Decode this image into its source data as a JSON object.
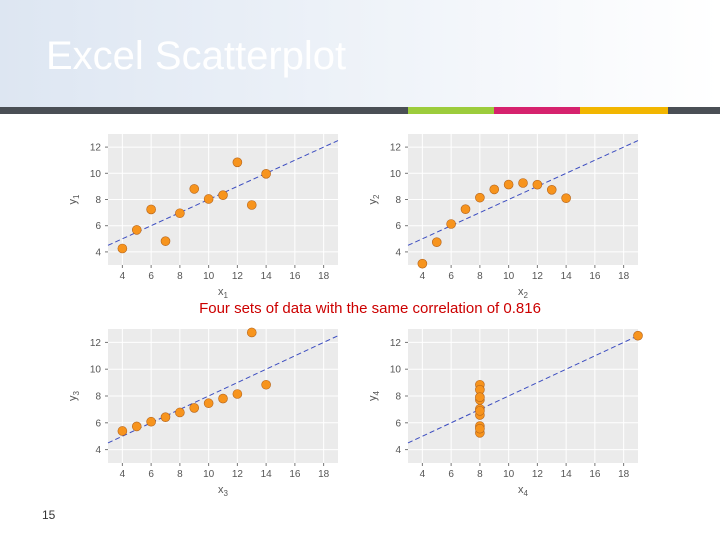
{
  "slide": {
    "title": "Excel Scatterplot",
    "caption": "Four sets of data with the same correlation of 0.816",
    "page_number": "15",
    "accent_colors": [
      "#4a4f55",
      "#9ccc3c",
      "#d6226e",
      "#f2b600",
      "#4a4f55"
    ],
    "title_gradient": [
      "#dde6f2",
      "#ffffff"
    ]
  },
  "chart_data": [
    {
      "type": "scatter",
      "xlabel": "x",
      "xlabel_sub": "1",
      "ylabel": "y",
      "ylabel_sub": "1",
      "xlim": [
        3,
        19
      ],
      "ylim": [
        3,
        13
      ],
      "xticks": [
        4,
        6,
        8,
        10,
        12,
        14,
        16,
        18
      ],
      "yticks": [
        4,
        6,
        8,
        10,
        12
      ],
      "grid": true,
      "marker_color": "#f7941d",
      "line_color": "#3b4cc0",
      "fit_line": {
        "intercept": 3.0,
        "slope": 0.5
      },
      "x": [
        10,
        8,
        13,
        9,
        11,
        14,
        6,
        4,
        12,
        7,
        5
      ],
      "y": [
        8.04,
        6.95,
        7.58,
        8.81,
        8.33,
        9.96,
        7.24,
        4.26,
        10.84,
        4.82,
        5.68
      ]
    },
    {
      "type": "scatter",
      "xlabel": "x",
      "xlabel_sub": "2",
      "ylabel": "y",
      "ylabel_sub": "2",
      "xlim": [
        3,
        19
      ],
      "ylim": [
        3,
        13
      ],
      "xticks": [
        4,
        6,
        8,
        10,
        12,
        14,
        16,
        18
      ],
      "yticks": [
        4,
        6,
        8,
        10,
        12
      ],
      "grid": true,
      "marker_color": "#f7941d",
      "line_color": "#3b4cc0",
      "fit_line": {
        "intercept": 3.0,
        "slope": 0.5
      },
      "x": [
        10,
        8,
        13,
        9,
        11,
        14,
        6,
        4,
        12,
        7,
        5
      ],
      "y": [
        9.14,
        8.14,
        8.74,
        8.77,
        9.26,
        8.1,
        6.13,
        3.1,
        9.13,
        7.26,
        4.74
      ]
    },
    {
      "type": "scatter",
      "xlabel": "x",
      "xlabel_sub": "3",
      "ylabel": "y",
      "ylabel_sub": "3",
      "xlim": [
        3,
        19
      ],
      "ylim": [
        3,
        13
      ],
      "xticks": [
        4,
        6,
        8,
        10,
        12,
        14,
        16,
        18
      ],
      "yticks": [
        4,
        6,
        8,
        10,
        12
      ],
      "grid": true,
      "marker_color": "#f7941d",
      "line_color": "#3b4cc0",
      "fit_line": {
        "intercept": 3.0,
        "slope": 0.5
      },
      "x": [
        10,
        8,
        13,
        9,
        11,
        14,
        6,
        4,
        12,
        7,
        5
      ],
      "y": [
        7.46,
        6.77,
        12.74,
        7.11,
        7.81,
        8.84,
        6.08,
        5.39,
        8.15,
        6.42,
        5.73
      ]
    },
    {
      "type": "scatter",
      "xlabel": "x",
      "xlabel_sub": "4",
      "ylabel": "y",
      "ylabel_sub": "4",
      "xlim": [
        3,
        19
      ],
      "ylim": [
        3,
        13
      ],
      "xticks": [
        4,
        6,
        8,
        10,
        12,
        14,
        16,
        18
      ],
      "yticks": [
        4,
        6,
        8,
        10,
        12
      ],
      "grid": true,
      "marker_color": "#f7941d",
      "line_color": "#3b4cc0",
      "fit_line": {
        "intercept": 3.0,
        "slope": 0.5
      },
      "x": [
        8,
        8,
        8,
        8,
        8,
        8,
        8,
        19,
        8,
        8,
        8
      ],
      "y": [
        6.58,
        5.76,
        7.71,
        8.84,
        8.47,
        7.04,
        5.25,
        12.5,
        5.56,
        7.91,
        6.89
      ]
    }
  ]
}
